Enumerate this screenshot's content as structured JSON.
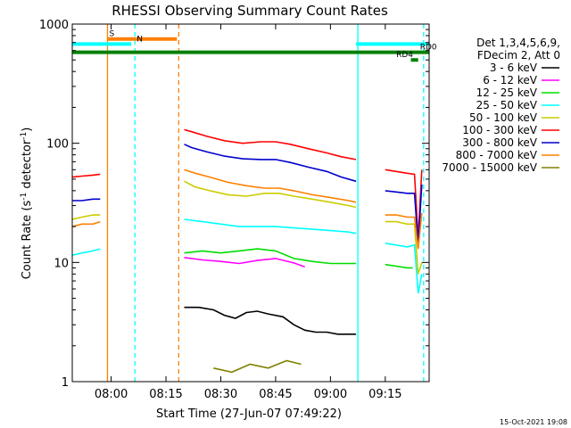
{
  "chart_data": {
    "type": "line",
    "title": "RHESSI Observing Summary Count Rates",
    "xlabel": "Start Time (27-Jun-07 07:49:22)",
    "ylabel_pre": "Count Rate (s",
    "ylabel_sup": "-1",
    "ylabel_post": " detector",
    "ylabel_end": ")",
    "y_scale": "log",
    "ylim": [
      1,
      1000
    ],
    "xlim": [
      "07:49:22",
      "09:27:00"
    ],
    "x_ticks": [
      "08:00",
      "08:15",
      "08:30",
      "08:45",
      "09:00",
      "09:15"
    ],
    "y_ticks": [
      "1",
      "10",
      "100",
      "1000"
    ],
    "legend_title": [
      "Det 1,3,4,5,6,9,",
      "FDecim 2, Att 0"
    ],
    "legend_position": "right",
    "footer_stamp": "15-Oct-2021 19:08",
    "grid": false,
    "series": [
      {
        "name": "3 - 6 keV",
        "color": "#000000",
        "segments": [
          {
            "x": [
              "08:20:00",
              "08:24:00",
              "08:28:00",
              "08:31:00",
              "08:34:00",
              "08:37:00",
              "08:40:00",
              "08:43:00",
              "08:47:00",
              "08:50:00",
              "08:53:00",
              "08:56:00",
              "08:59:00",
              "09:02:00",
              "09:05:00",
              "09:07:00"
            ],
            "y": [
              4.2,
              4.2,
              4.0,
              3.6,
              3.4,
              3.8,
              3.9,
              3.7,
              3.5,
              3.0,
              2.7,
              2.6,
              2.6,
              2.5,
              2.5,
              2.5
            ]
          }
        ]
      },
      {
        "name": "6 - 12 keV",
        "color": "#ff00ff",
        "segments": [
          {
            "x": [
              "08:20:00",
              "08:25:00",
              "08:30:00",
              "08:35:00",
              "08:40:00",
              "08:45:00",
              "08:50:00",
              "08:53:00"
            ],
            "y": [
              11.0,
              10.5,
              10.2,
              9.8,
              10.4,
              10.8,
              9.9,
              9.2
            ]
          }
        ]
      },
      {
        "name": "12 - 25 keV",
        "color": "#00dd00",
        "segments": [
          {
            "x": [
              "08:20:00",
              "08:25:00",
              "08:30:00",
              "08:35:00",
              "08:40:00",
              "08:45:00",
              "08:50:00",
              "08:55:00",
              "09:00:00",
              "09:05:00",
              "09:07:00"
            ],
            "y": [
              12.0,
              12.5,
              12.0,
              12.5,
              13.0,
              12.5,
              10.8,
              10.2,
              9.8,
              9.8,
              9.8
            ]
          },
          {
            "x": [
              "09:15:00",
              "09:18:00",
              "09:21:00",
              "09:22:30"
            ],
            "y": [
              9.6,
              9.3,
              9.0,
              9.0
            ]
          }
        ]
      },
      {
        "name": "25 - 50 keV",
        "color": "#00ffff",
        "segments": [
          {
            "x": [
              "07:49:22",
              "07:52:00",
              "07:55:00",
              "07:57:00"
            ],
            "y": [
              11.5,
              12.0,
              12.5,
              13.0
            ]
          },
          {
            "x": [
              "08:20:00",
              "08:25:00",
              "08:30:00",
              "08:35:00",
              "08:40:00",
              "08:45:00",
              "08:50:00",
              "08:55:00",
              "09:00:00",
              "09:05:00",
              "09:07:00"
            ],
            "y": [
              23.0,
              22.0,
              21.0,
              20.0,
              20.0,
              20.0,
              19.5,
              19.0,
              18.5,
              18.0,
              17.5
            ]
          },
          {
            "x": [
              "09:15:00",
              "09:18:00",
              "09:21:00",
              "09:23:00",
              "09:24:00",
              "09:25:00"
            ],
            "y": [
              14.5,
              14.0,
              13.5,
              14.0,
              5.5,
              8.0
            ]
          }
        ]
      },
      {
        "name": "50 - 100 keV",
        "color": "#cccc00",
        "segments": [
          {
            "x": [
              "07:49:22",
              "07:52:00",
              "07:55:00",
              "07:57:00"
            ],
            "y": [
              23.0,
              24.0,
              25.0,
              25.0
            ]
          },
          {
            "x": [
              "08:20:00",
              "08:23:00",
              "08:27:00",
              "08:32:00",
              "08:37:00",
              "08:42:00",
              "08:46:00",
              "08:50:00",
              "08:55:00",
              "09:00:00",
              "09:05:00",
              "09:07:00"
            ],
            "y": [
              48.0,
              43.0,
              40.0,
              37.0,
              36.0,
              38.0,
              38.0,
              36.0,
              34.0,
              32.0,
              30.0,
              29.0
            ]
          },
          {
            "x": [
              "09:15:00",
              "09:18:00",
              "09:21:00",
              "09:23:00",
              "09:24:00",
              "09:25:00"
            ],
            "y": [
              22.0,
              22.0,
              21.0,
              21.0,
              8.0,
              10.0
            ]
          }
        ]
      },
      {
        "name": "100 - 300 keV",
        "color": "#ff0000",
        "segments": [
          {
            "x": [
              "07:49:22",
              "07:52:00",
              "07:55:00",
              "07:57:00"
            ],
            "y": [
              52.0,
              53.0,
              54.0,
              55.0
            ]
          },
          {
            "x": [
              "08:20:00",
              "08:22:00",
              "08:26:00",
              "08:31:00",
              "08:36:00",
              "08:41:00",
              "08:45:00",
              "08:49:00",
              "08:54:00",
              "08:59:00",
              "09:03:00",
              "09:07:00"
            ],
            "y": [
              130.0,
              125.0,
              115.0,
              105.0,
              100.0,
              103.0,
              103.0,
              98.0,
              90.0,
              83.0,
              77.0,
              73.0
            ]
          },
          {
            "x": [
              "09:15:00",
              "09:18:00",
              "09:21:00",
              "09:23:00",
              "09:24:00",
              "09:25:00"
            ],
            "y": [
              60.0,
              58.0,
              56.0,
              55.0,
              16.0,
              60.0
            ]
          }
        ]
      },
      {
        "name": "300 - 800 keV",
        "color": "#0000cc",
        "segments": [
          {
            "x": [
              "07:49:22",
              "07:52:00",
              "07:55:00",
              "07:57:00"
            ],
            "y": [
              33.0,
              33.0,
              34.0,
              34.0
            ]
          },
          {
            "x": [
              "08:20:00",
              "08:22:00",
              "08:26:00",
              "08:31:00",
              "08:36:00",
              "08:41:00",
              "08:45:00",
              "08:49:00",
              "08:54:00",
              "08:59:00",
              "09:03:00",
              "09:07:00"
            ],
            "y": [
              98.0,
              92.0,
              85.0,
              78.0,
              74.0,
              73.0,
              73.0,
              69.0,
              63.0,
              58.0,
              52.0,
              48.0
            ]
          },
          {
            "x": [
              "09:15:00",
              "09:18:00",
              "09:21:00",
              "09:23:00",
              "09:24:00",
              "09:25:00"
            ],
            "y": [
              40.0,
              39.0,
              38.0,
              38.0,
              14.0,
              45.0
            ]
          }
        ]
      },
      {
        "name": "800 - 7000 keV",
        "color": "#ff8000",
        "segments": [
          {
            "x": [
              "07:49:22",
              "07:52:00",
              "07:55:00",
              "07:57:00"
            ],
            "y": [
              20.0,
              21.0,
              21.0,
              22.0
            ]
          },
          {
            "x": [
              "08:20:00",
              "08:23:00",
              "08:27:00",
              "08:32:00",
              "08:37:00",
              "08:42:00",
              "08:46:00",
              "08:50:00",
              "08:55:00",
              "09:00:00",
              "09:05:00",
              "09:07:00"
            ],
            "y": [
              60.0,
              56.0,
              52.0,
              47.0,
              44.0,
              42.0,
              42.0,
              40.0,
              37.0,
              35.0,
              33.0,
              32.0
            ]
          },
          {
            "x": [
              "09:15:00",
              "09:18:00",
              "09:21:00",
              "09:23:00",
              "09:24:00",
              "09:25:00"
            ],
            "y": [
              25.0,
              25.0,
              24.0,
              24.0,
              13.0,
              26.0
            ]
          }
        ]
      },
      {
        "name": "7000 - 15000 keV",
        "color": "#808000",
        "segments": [
          {
            "x": [
              "08:28:00",
              "08:33:00",
              "08:38:00",
              "08:43:00",
              "08:48:00",
              "08:52:00"
            ],
            "y": [
              1.3,
              1.2,
              1.4,
              1.3,
              1.5,
              1.4
            ]
          }
        ]
      }
    ],
    "attenuator_bars": [
      {
        "label": "S",
        "color": "#ff8000",
        "x": [
          "07:59:00",
          "08:18:00"
        ],
        "y": 750,
        "label_at": "07:59:30"
      },
      {
        "label": "N",
        "color": "#00ffff",
        "x": [
          "07:49:22",
          "08:05:30"
        ],
        "y": 680,
        "label_at": "08:07:00"
      },
      {
        "label": "",
        "color": "#00ffff",
        "x": [
          "09:07:00",
          "09:27:00"
        ],
        "y": 680,
        "label_at": ""
      },
      {
        "label": "RD0",
        "color": "#008000",
        "x": [
          "07:49:22",
          "09:27:00"
        ],
        "y": 580,
        "label_at": "09:24:30"
      },
      {
        "label": "RD4",
        "color": "#008000",
        "x": [
          "09:22:00",
          "09:24:00"
        ],
        "y": 500,
        "label_at": "09:18:00"
      }
    ],
    "vlines": [
      {
        "x": "07:59:00",
        "color": "#ff8000",
        "style": "solid"
      },
      {
        "x": "08:06:30",
        "color": "#00ffff",
        "style": "dashed"
      },
      {
        "x": "08:18:30",
        "color": "#ff8000",
        "style": "dashed"
      },
      {
        "x": "09:07:30",
        "color": "#00ffff",
        "style": "solid"
      },
      {
        "x": "09:25:30",
        "color": "#00ffff",
        "style": "dashed"
      }
    ]
  }
}
